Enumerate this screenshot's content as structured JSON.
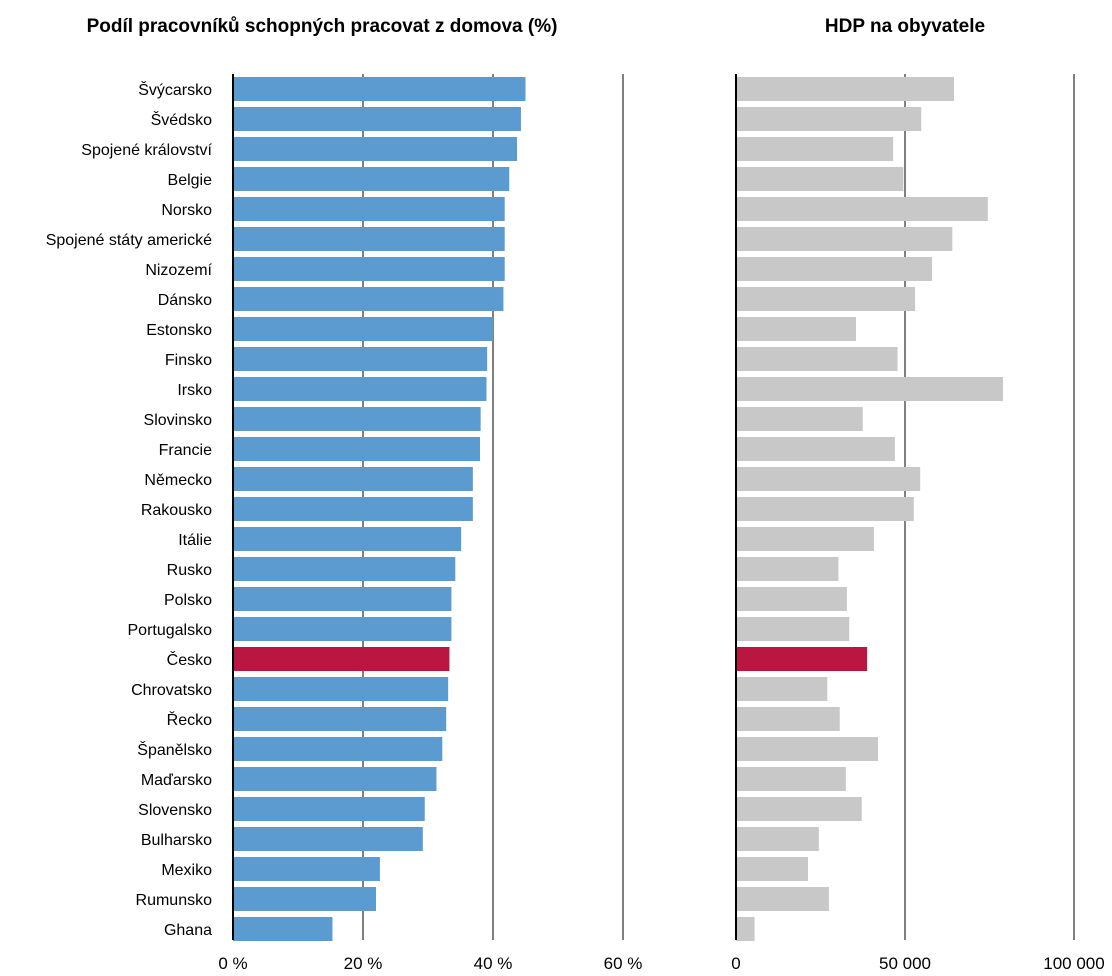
{
  "chart_data": [
    {
      "type": "bar",
      "orientation": "horizontal",
      "title": "Podíl pracovníků schopných pracovat z domova (%)",
      "categories": [
        "Švýcarsko",
        "Švédsko",
        "Spojené království",
        "Belgie",
        "Norsko",
        "Spojené státy americké",
        "Nizozemí",
        "Dánsko",
        "Estonsko",
        "Finsko",
        "Irsko",
        "Slovinsko",
        "Francie",
        "Německo",
        "Rakousko",
        "Itálie",
        "Rusko",
        "Polsko",
        "Portugalsko",
        "Česko",
        "Chrovatsko",
        "Řecko",
        "Španělsko",
        "Maďarsko",
        "Slovensko",
        "Bulharsko",
        "Mexiko",
        "Rumunsko",
        "Ghana"
      ],
      "values": [
        45,
        44.3,
        43.7,
        42.5,
        41.8,
        41.8,
        41.8,
        41.6,
        40,
        39.1,
        39,
        38.1,
        38,
        36.9,
        36.9,
        35.1,
        34.2,
        33.6,
        33.6,
        33.3,
        33.1,
        32.8,
        32.2,
        31.3,
        29.5,
        29.2,
        22.6,
        22,
        15.3
      ],
      "highlight": "Česko",
      "xlim": [
        0,
        60
      ],
      "xticks": [
        "0 %",
        "20 %",
        "40 %",
        "60 %"
      ],
      "grid": true,
      "colors": {
        "bar": "#5B9BD0",
        "highlight": "#BA1642",
        "grid": "#000000"
      }
    },
    {
      "type": "bar",
      "orientation": "horizontal",
      "title": "HDP na obyvatele",
      "categories": [
        "Švýcarsko",
        "Švédsko",
        "Spojené království",
        "Belgie",
        "Norsko",
        "Spojené státy americké",
        "Nizozemí",
        "Dánsko",
        "Estonsko",
        "Finsko",
        "Irsko",
        "Slovinsko",
        "Francie",
        "Německo",
        "Rakousko",
        "Itálie",
        "Rusko",
        "Polsko",
        "Portugalsko",
        "Česko",
        "Chrovatsko",
        "Řecko",
        "Španělsko",
        "Maďarsko",
        "Slovensko",
        "Bulharsko",
        "Mexiko",
        "Rumunsko",
        "Ghana"
      ],
      "values": [
        64500,
        54800,
        46500,
        49500,
        74500,
        64000,
        58000,
        53000,
        35500,
        47800,
        79000,
        37500,
        47000,
        54500,
        52600,
        40800,
        30300,
        32800,
        33500,
        38800,
        27000,
        30700,
        42000,
        32500,
        37200,
        24500,
        21300,
        27500,
        5500
      ],
      "highlight": "Česko",
      "xlim": [
        0,
        100000
      ],
      "xticks": [
        "0",
        "50 000",
        "100 000"
      ],
      "grid": true,
      "colors": {
        "bar": "#C8C8C8",
        "highlight": "#BA1642",
        "grid": "#000000"
      }
    }
  ]
}
